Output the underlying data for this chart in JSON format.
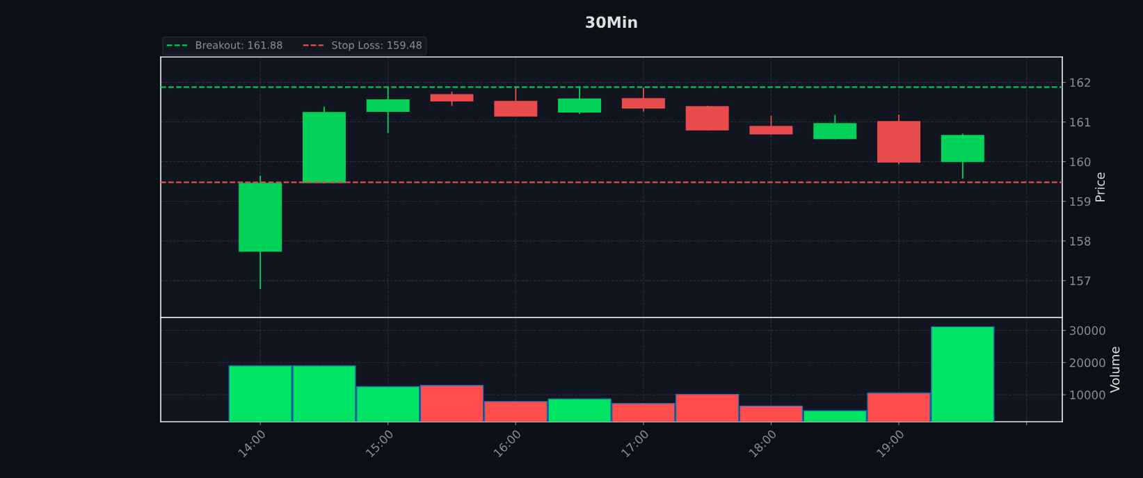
{
  "chart_data": [
    {
      "type": "candlestick",
      "title": "30Min",
      "ylabel": "Price",
      "x": [
        14.0,
        14.5,
        15.0,
        15.5,
        16.0,
        16.5,
        17.0,
        17.5,
        18.0,
        18.5,
        19.0,
        19.5
      ],
      "ohlc": [
        [
          157.74,
          159.63,
          156.8,
          159.45
        ],
        [
          159.47,
          161.37,
          159.47,
          161.24
        ],
        [
          161.27,
          161.87,
          160.74,
          161.56
        ],
        [
          161.69,
          161.75,
          161.42,
          161.53
        ],
        [
          161.52,
          161.87,
          161.15,
          161.15
        ],
        [
          161.25,
          161.87,
          161.22,
          161.58
        ],
        [
          161.59,
          161.85,
          161.28,
          161.35
        ],
        [
          161.39,
          161.39,
          160.8,
          160.8
        ],
        [
          160.89,
          161.14,
          160.7,
          160.7
        ],
        [
          160.58,
          161.16,
          160.58,
          160.96
        ],
        [
          161.01,
          161.17,
          159.95,
          159.99
        ],
        [
          160.0,
          160.69,
          159.59,
          160.66
        ]
      ],
      "colors": [
        "#00d25a",
        "#00d25a",
        "#00d25a",
        "#e84c4c",
        "#e84c4c",
        "#00d25a",
        "#e84c4c",
        "#e84c4c",
        "#e84c4c",
        "#00d25a",
        "#e84c4c",
        "#00d25a"
      ],
      "xlim": [
        13.22,
        20.28
      ],
      "ylim": [
        156.07,
        162.64
      ],
      "yticks": [
        157,
        158,
        159,
        160,
        161,
        162
      ],
      "ref_lines": [
        {
          "axis": "y",
          "value": 161.88,
          "label": "Breakout: 161.88",
          "color": "#00c853",
          "line_style": "dashed"
        },
        {
          "axis": "y",
          "value": 159.48,
          "label": "Stop Loss: 159.48",
          "color": "#e84c4c",
          "line_style": "dashed"
        }
      ],
      "legend": "top left",
      "grid": true,
      "tick_labels": "y"
    },
    {
      "type": "bar",
      "ylabel": "Volume",
      "x": [
        14.0,
        14.5,
        15.0,
        15.5,
        16.0,
        16.5,
        17.0,
        17.5,
        18.0,
        18.5,
        19.0,
        19.5
      ],
      "values": [
        19000,
        19000,
        12500,
        12900,
        7900,
        8700,
        7300,
        10100,
        6500,
        5000,
        10500,
        31100
      ],
      "colors": [
        "#00e464",
        "#00e464",
        "#00e464",
        "#ff4d4d",
        "#ff4d4d",
        "#00e464",
        "#ff4d4d",
        "#ff4d4d",
        "#ff4d4d",
        "#00e464",
        "#ff4d4d",
        "#00e464"
      ],
      "xlim": [
        13.22,
        20.28
      ],
      "ylim": [
        1600,
        34000
      ],
      "yticks": [
        10000,
        20000,
        30000
      ],
      "xticks": [
        {
          "value": 14,
          "label": "14:00"
        },
        {
          "value": 15,
          "label": "15:00"
        },
        {
          "value": 16,
          "label": "16:00"
        },
        {
          "value": 17,
          "label": "17:00"
        },
        {
          "value": 18,
          "label": "18:00"
        },
        {
          "value": 19,
          "label": "19:00"
        },
        {
          "value": 20,
          "label": null
        }
      ],
      "grid": true
    }
  ]
}
